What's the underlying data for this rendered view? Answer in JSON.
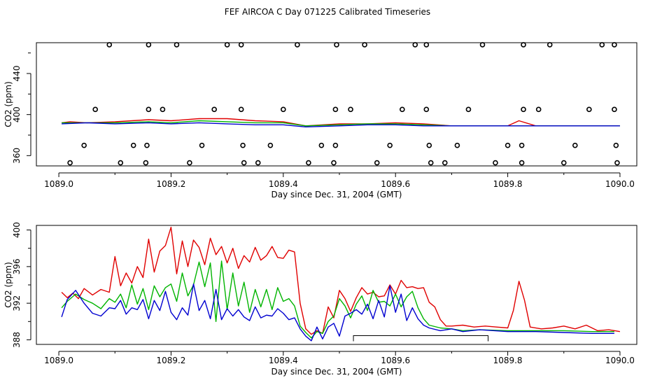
{
  "title": "FEF AIRCOA C  Day 071225  Calibrated Timeseries",
  "colors": {
    "red": "#e00000",
    "green": "#00b400",
    "blue": "#0000d0",
    "axis": "#000000"
  },
  "chart_data": [
    {
      "type": "scatter+line",
      "xlabel": "Day since Dec. 31, 2004 (GMT)",
      "ylabel": "CO2 (ppm)",
      "xlim": [
        1089.0,
        1090.0
      ],
      "ylim": [
        350,
        470
      ],
      "xticks": [
        "1089.0",
        "1089.2",
        "1089.4",
        "1089.6",
        "1089.8",
        "1090.0"
      ],
      "yticks": [
        "360",
        "400",
        "440"
      ],
      "calibration_points": {
        "levels": [
          468,
          405,
          370,
          353
        ],
        "x_468": [
          1089.09,
          1089.16,
          1089.21,
          1089.3,
          1089.325,
          1089.425,
          1089.495,
          1089.545,
          1089.635,
          1089.655,
          1089.755,
          1089.828,
          1089.875,
          1089.968,
          1089.99
        ],
        "x_405": [
          1089.065,
          1089.16,
          1089.185,
          1089.277,
          1089.325,
          1089.4,
          1089.493,
          1089.52,
          1089.612,
          1089.655,
          1089.73,
          1089.828,
          1089.855,
          1089.945,
          1089.99
        ],
        "x_370": [
          1089.045,
          1089.133,
          1089.157,
          1089.255,
          1089.328,
          1089.377,
          1089.468,
          1089.493,
          1089.59,
          1089.66,
          1089.71,
          1089.8,
          1089.825,
          1089.92,
          1089.993
        ],
        "x_353": [
          1089.02,
          1089.11,
          1089.155,
          1089.233,
          1089.33,
          1089.355,
          1089.445,
          1089.49,
          1089.567,
          1089.663,
          1089.688,
          1089.778,
          1089.825,
          1089.9,
          1089.995
        ]
      },
      "series": [
        {
          "name": "red",
          "x": [
            1089.005,
            1089.02,
            1089.05,
            1089.1,
            1089.16,
            1089.2,
            1089.25,
            1089.3,
            1089.35,
            1089.4,
            1089.44,
            1089.5,
            1089.55,
            1089.6,
            1089.65,
            1089.7,
            1089.75,
            1089.8,
            1089.82,
            1089.85,
            1089.9,
            1089.95,
            1090.0
          ],
          "values": [
            392,
            393,
            392,
            393,
            395,
            394,
            396,
            396,
            394,
            393,
            389,
            391,
            391,
            392,
            391,
            389,
            389,
            389,
            394,
            389,
            389,
            389,
            389
          ]
        },
        {
          "name": "green",
          "x": [
            1089.005,
            1089.05,
            1089.1,
            1089.16,
            1089.2,
            1089.25,
            1089.3,
            1089.35,
            1089.4,
            1089.44,
            1089.5,
            1089.55,
            1089.6,
            1089.65,
            1089.7,
            1089.8,
            1089.9,
            1090.0
          ],
          "values": [
            392,
            392,
            392,
            393,
            392,
            394,
            393,
            392,
            392,
            389,
            390,
            391,
            391,
            390,
            389,
            389,
            389,
            389
          ]
        },
        {
          "name": "blue",
          "x": [
            1089.005,
            1089.05,
            1089.1,
            1089.16,
            1089.2,
            1089.25,
            1089.3,
            1089.35,
            1089.4,
            1089.44,
            1089.5,
            1089.55,
            1089.6,
            1089.65,
            1089.7,
            1089.8,
            1089.9,
            1090.0
          ],
          "values": [
            391,
            392,
            391,
            392,
            391,
            392,
            391,
            390,
            390,
            388,
            389,
            390,
            390,
            389,
            389,
            389,
            389,
            389
          ]
        }
      ]
    },
    {
      "type": "line",
      "xlabel": "Day since Dec. 31, 2004 (GMT)",
      "ylabel": "CO2 (ppm)",
      "xlim": [
        1089.0,
        1090.0
      ],
      "ylim": [
        387.5,
        400.5
      ],
      "xticks": [
        "1089.0",
        "1089.2",
        "1089.4",
        "1089.6",
        "1089.8",
        "1090.0"
      ],
      "yticks": [
        "388",
        "392",
        "396",
        "400"
      ],
      "bracket": {
        "x_start": 1089.525,
        "x_end": 1089.765,
        "y": 388.0
      },
      "series": [
        {
          "name": "red",
          "x": [
            1089.005,
            1089.015,
            1089.025,
            1089.035,
            1089.045,
            1089.06,
            1089.075,
            1089.09,
            1089.1,
            1089.11,
            1089.12,
            1089.13,
            1089.14,
            1089.15,
            1089.16,
            1089.17,
            1089.18,
            1089.19,
            1089.2,
            1089.21,
            1089.22,
            1089.23,
            1089.24,
            1089.25,
            1089.26,
            1089.27,
            1089.28,
            1089.29,
            1089.3,
            1089.31,
            1089.32,
            1089.33,
            1089.34,
            1089.35,
            1089.36,
            1089.37,
            1089.38,
            1089.39,
            1089.4,
            1089.41,
            1089.42,
            1089.43,
            1089.44,
            1089.45,
            1089.46,
            1089.47,
            1089.48,
            1089.49,
            1089.5,
            1089.51,
            1089.52,
            1089.53,
            1089.54,
            1089.55,
            1089.56,
            1089.57,
            1089.58,
            1089.59,
            1089.6,
            1089.61,
            1089.62,
            1089.63,
            1089.64,
            1089.65,
            1089.66,
            1089.67,
            1089.68,
            1089.69,
            1089.7,
            1089.72,
            1089.74,
            1089.76,
            1089.78,
            1089.8,
            1089.81,
            1089.82,
            1089.83,
            1089.84,
            1089.86,
            1089.88,
            1089.9,
            1089.92,
            1089.94,
            1089.96,
            1089.98,
            1090.0
          ],
          "values": [
            393.2,
            392.6,
            393.1,
            392.5,
            393.6,
            392.9,
            393.5,
            393.2,
            397.1,
            393.9,
            395.3,
            394.2,
            396.0,
            394.8,
            399.0,
            395.4,
            397.7,
            398.3,
            400.3,
            395.2,
            398.8,
            396.0,
            398.9,
            398.1,
            396.2,
            399.1,
            397.3,
            398.2,
            396.4,
            398.0,
            395.8,
            397.2,
            396.5,
            398.1,
            396.7,
            397.2,
            398.2,
            397.0,
            396.9,
            397.8,
            397.6,
            392.0,
            389.2,
            388.6,
            389.0,
            388.7,
            391.6,
            390.4,
            393.4,
            392.5,
            391.1,
            392.6,
            393.7,
            393.0,
            393.2,
            392.7,
            392.8,
            394.0,
            393.0,
            394.5,
            393.7,
            393.8,
            393.6,
            393.7,
            392.1,
            391.6,
            390.2,
            389.5,
            389.5,
            389.6,
            389.4,
            389.5,
            389.4,
            389.3,
            391.2,
            394.4,
            392.3,
            389.4,
            389.2,
            389.3,
            389.5,
            389.2,
            389.6,
            389.0,
            389.1,
            388.9
          ]
        },
        {
          "name": "green",
          "x": [
            1089.005,
            1089.015,
            1089.03,
            1089.045,
            1089.06,
            1089.075,
            1089.09,
            1089.1,
            1089.11,
            1089.12,
            1089.13,
            1089.14,
            1089.15,
            1089.16,
            1089.17,
            1089.18,
            1089.19,
            1089.2,
            1089.21,
            1089.22,
            1089.23,
            1089.24,
            1089.25,
            1089.26,
            1089.27,
            1089.28,
            1089.29,
            1089.3,
            1089.31,
            1089.32,
            1089.33,
            1089.34,
            1089.35,
            1089.36,
            1089.37,
            1089.38,
            1089.39,
            1089.4,
            1089.41,
            1089.42,
            1089.43,
            1089.44,
            1089.45,
            1089.46,
            1089.47,
            1089.48,
            1089.49,
            1089.5,
            1089.51,
            1089.52,
            1089.53,
            1089.54,
            1089.55,
            1089.56,
            1089.57,
            1089.58,
            1089.59,
            1089.6,
            1089.61,
            1089.62,
            1089.63,
            1089.64,
            1089.65,
            1089.66,
            1089.68,
            1089.7,
            1089.72,
            1089.75,
            1089.8,
            1089.85,
            1089.9,
            1089.95,
            1089.99
          ],
          "values": [
            391.5,
            392.2,
            393.0,
            392.4,
            392.0,
            391.4,
            392.5,
            392.1,
            393.0,
            391.5,
            394.0,
            391.9,
            393.6,
            391.3,
            393.9,
            392.7,
            393.7,
            394.1,
            392.2,
            395.3,
            392.8,
            394.0,
            396.5,
            393.8,
            396.4,
            390.0,
            396.6,
            391.3,
            395.3,
            391.7,
            394.3,
            391.0,
            393.5,
            391.6,
            393.5,
            391.3,
            393.7,
            392.2,
            392.5,
            391.7,
            389.5,
            388.8,
            388.2,
            388.9,
            388.7,
            390.0,
            390.6,
            392.5,
            391.7,
            390.4,
            391.9,
            392.8,
            391.2,
            393.4,
            392.1,
            392.2,
            391.7,
            393.0,
            391.6,
            392.7,
            393.3,
            391.5,
            390.3,
            389.6,
            389.3,
            389.2,
            389.0,
            389.1,
            389.0,
            389.0,
            389.0,
            388.9,
            388.9
          ]
        },
        {
          "name": "blue",
          "x": [
            1089.005,
            1089.015,
            1089.03,
            1089.045,
            1089.06,
            1089.075,
            1089.09,
            1089.1,
            1089.11,
            1089.12,
            1089.13,
            1089.14,
            1089.15,
            1089.16,
            1089.17,
            1089.18,
            1089.19,
            1089.2,
            1089.21,
            1089.22,
            1089.23,
            1089.24,
            1089.25,
            1089.26,
            1089.27,
            1089.28,
            1089.29,
            1089.3,
            1089.31,
            1089.32,
            1089.33,
            1089.34,
            1089.35,
            1089.36,
            1089.37,
            1089.38,
            1089.39,
            1089.4,
            1089.41,
            1089.42,
            1089.43,
            1089.44,
            1089.45,
            1089.46,
            1089.47,
            1089.48,
            1089.49,
            1089.5,
            1089.51,
            1089.52,
            1089.53,
            1089.54,
            1089.55,
            1089.56,
            1089.57,
            1089.58,
            1089.59,
            1089.6,
            1089.61,
            1089.62,
            1089.63,
            1089.64,
            1089.65,
            1089.66,
            1089.68,
            1089.7,
            1089.72,
            1089.75,
            1089.8,
            1089.85,
            1089.9,
            1089.95,
            1089.99
          ],
          "values": [
            390.5,
            392.4,
            393.4,
            392.0,
            390.9,
            390.6,
            391.5,
            391.4,
            392.3,
            390.8,
            391.5,
            391.3,
            392.4,
            390.3,
            392.3,
            391.2,
            393.3,
            391.0,
            390.2,
            391.5,
            390.7,
            394.1,
            391.2,
            392.3,
            390.3,
            393.5,
            390.2,
            391.4,
            390.6,
            391.3,
            390.5,
            390.1,
            391.6,
            390.4,
            390.7,
            390.6,
            391.4,
            390.9,
            390.2,
            390.4,
            389.2,
            388.4,
            387.9,
            389.4,
            388.1,
            389.4,
            389.8,
            388.4,
            390.6,
            390.9,
            391.3,
            390.8,
            391.9,
            390.3,
            392.3,
            390.5,
            393.9,
            391.0,
            393.0,
            390.1,
            391.5,
            390.3,
            389.6,
            389.3,
            389.0,
            389.2,
            388.9,
            389.1,
            388.9,
            388.9,
            388.8,
            388.7,
            388.7
          ]
        }
      ]
    }
  ]
}
